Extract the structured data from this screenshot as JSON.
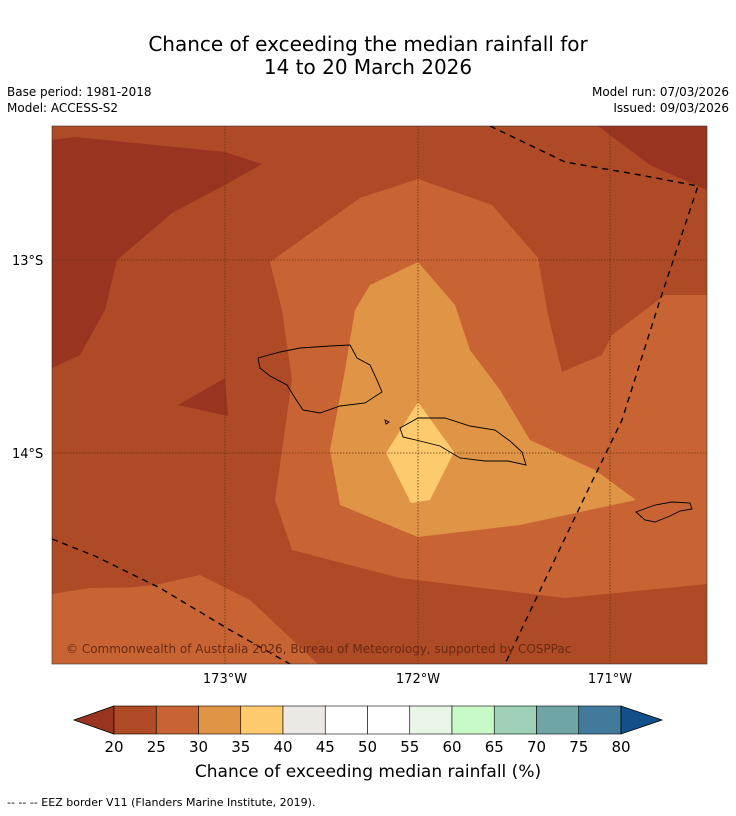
{
  "title": {
    "line1": "Chance of exceeding the median rainfall for",
    "line2": "14 to 20 March 2026"
  },
  "meta": {
    "base_period": "Base period: 1981-2018",
    "model": "Model: ACCESS-S2",
    "model_run": "Model run: 07/03/2026",
    "issued": "Issued: 09/03/2026"
  },
  "axes": {
    "lat_labels": [
      "13°S",
      "14°S"
    ],
    "lon_labels": [
      "173°W",
      "172°W",
      "171°W"
    ]
  },
  "copyright": "© Commonwealth of Australia 2026, Bureau of Meteorology, supported by COSPPac",
  "colorbar": {
    "title": "Chance of exceeding median rainfall (%)",
    "ticks": [
      "20",
      "25",
      "30",
      "35",
      "40",
      "45",
      "50",
      "55",
      "60",
      "65",
      "70",
      "75",
      "80"
    ],
    "colors": {
      "below20": "#983420",
      "b20_25": "#ae4a25",
      "b25_30": "#c86433",
      "b30_35": "#e09445",
      "b35_40": "#fdcb6d",
      "b40_45": "#ece9e4",
      "b45_50": "#ffffff",
      "b50_55": "#ffffff",
      "b55_60": "#e9f6e7",
      "b60_65": "#c8fac7",
      "b65_70": "#9dd0b6",
      "b70_75": "#70a5a7",
      "b75_80": "#417a9b",
      "above80": "#124f8b"
    }
  },
  "footer": "--  --  -- EEZ border V11 (Flanders Marine Institute, 2019)."
}
